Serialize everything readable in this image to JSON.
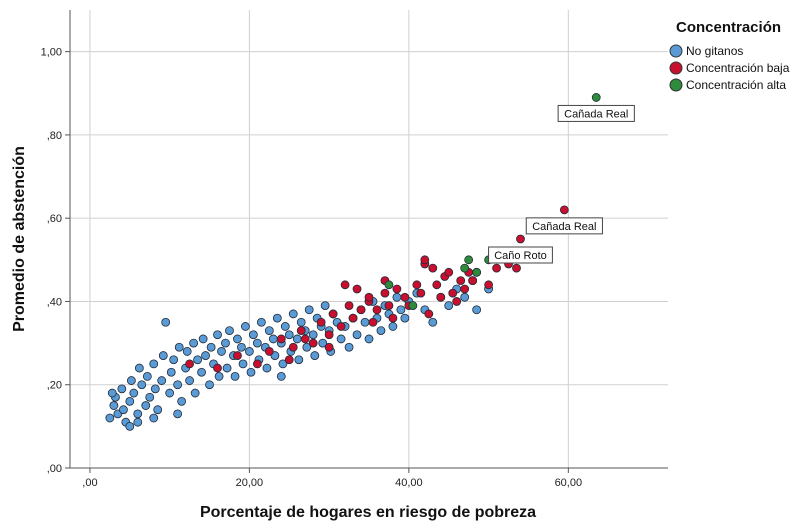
{
  "chart_data": {
    "type": "scatter",
    "xlabel": "Porcentaje de hogares en riesgo de pobreza",
    "ylabel": "Promedio de abstención",
    "xlim": [
      -2.5,
      72.5
    ],
    "ylim": [
      0,
      1.1
    ],
    "x_ticks": [
      {
        "value": 0,
        "label": ",00"
      },
      {
        "value": 20,
        "label": "20,00"
      },
      {
        "value": 40,
        "label": "40,00"
      },
      {
        "value": 60,
        "label": "60,00"
      }
    ],
    "y_ticks": [
      {
        "value": 0,
        "label": ",00"
      },
      {
        "value": 0.2,
        "label": ",20"
      },
      {
        "value": 0.4,
        "label": ",40"
      },
      {
        "value": 0.6,
        "label": ",60"
      },
      {
        "value": 0.8,
        "label": ",80"
      },
      {
        "value": 1.0,
        "label": "1,00"
      }
    ],
    "grid": true,
    "legend": {
      "title": "Concentración",
      "placement": "top-right",
      "entries": [
        {
          "name": "No gitanos",
          "color": "#5b9bd5"
        },
        {
          "name": "Concentración baja",
          "color": "#c8102e"
        },
        {
          "name": "Concentración alta",
          "color": "#2e8b3c"
        }
      ]
    },
    "series": [
      {
        "name": "No gitanos",
        "color": "#5b9bd5",
        "points": [
          [
            2.5,
            0.12
          ],
          [
            3.0,
            0.15
          ],
          [
            3.2,
            0.17
          ],
          [
            3.5,
            0.13
          ],
          [
            4.0,
            0.19
          ],
          [
            4.2,
            0.14
          ],
          [
            4.5,
            0.11
          ],
          [
            5.0,
            0.16
          ],
          [
            5.2,
            0.21
          ],
          [
            5.5,
            0.18
          ],
          [
            6.0,
            0.13
          ],
          [
            6.2,
            0.24
          ],
          [
            6.5,
            0.2
          ],
          [
            7.0,
            0.15
          ],
          [
            7.2,
            0.22
          ],
          [
            7.5,
            0.17
          ],
          [
            8.0,
            0.25
          ],
          [
            8.2,
            0.19
          ],
          [
            8.5,
            0.14
          ],
          [
            9.0,
            0.21
          ],
          [
            9.2,
            0.27
          ],
          [
            9.5,
            0.35
          ],
          [
            10.0,
            0.18
          ],
          [
            10.2,
            0.23
          ],
          [
            10.5,
            0.26
          ],
          [
            11.0,
            0.2
          ],
          [
            11.2,
            0.29
          ],
          [
            11.5,
            0.16
          ],
          [
            12.0,
            0.24
          ],
          [
            12.2,
            0.28
          ],
          [
            12.5,
            0.21
          ],
          [
            13.0,
            0.3
          ],
          [
            13.2,
            0.18
          ],
          [
            13.5,
            0.26
          ],
          [
            14.0,
            0.23
          ],
          [
            14.2,
            0.31
          ],
          [
            14.5,
            0.27
          ],
          [
            15.0,
            0.2
          ],
          [
            15.2,
            0.29
          ],
          [
            15.5,
            0.25
          ],
          [
            16.0,
            0.32
          ],
          [
            16.2,
            0.22
          ],
          [
            16.5,
            0.28
          ],
          [
            17.0,
            0.3
          ],
          [
            17.2,
            0.24
          ],
          [
            17.5,
            0.33
          ],
          [
            18.0,
            0.27
          ],
          [
            18.2,
            0.22
          ],
          [
            18.5,
            0.31
          ],
          [
            19.0,
            0.29
          ],
          [
            19.2,
            0.25
          ],
          [
            19.5,
            0.34
          ],
          [
            20.0,
            0.28
          ],
          [
            20.2,
            0.23
          ],
          [
            20.5,
            0.32
          ],
          [
            21.0,
            0.3
          ],
          [
            21.2,
            0.26
          ],
          [
            21.5,
            0.35
          ],
          [
            22.0,
            0.29
          ],
          [
            22.2,
            0.24
          ],
          [
            22.5,
            0.33
          ],
          [
            23.0,
            0.31
          ],
          [
            23.2,
            0.27
          ],
          [
            23.5,
            0.36
          ],
          [
            24.0,
            0.3
          ],
          [
            24.2,
            0.25
          ],
          [
            24.5,
            0.34
          ],
          [
            25.0,
            0.32
          ],
          [
            25.2,
            0.28
          ],
          [
            25.5,
            0.37
          ],
          [
            26.0,
            0.31
          ],
          [
            26.2,
            0.26
          ],
          [
            26.5,
            0.35
          ],
          [
            27.0,
            0.33
          ],
          [
            27.2,
            0.29
          ],
          [
            27.5,
            0.38
          ],
          [
            28.0,
            0.32
          ],
          [
            28.2,
            0.27
          ],
          [
            28.5,
            0.36
          ],
          [
            29.0,
            0.34
          ],
          [
            29.2,
            0.3
          ],
          [
            29.5,
            0.39
          ],
          [
            30.0,
            0.33
          ],
          [
            30.2,
            0.28
          ],
          [
            30.5,
            0.37
          ],
          [
            31.0,
            0.35
          ],
          [
            31.5,
            0.31
          ],
          [
            32.0,
            0.34
          ],
          [
            32.5,
            0.29
          ],
          [
            33.0,
            0.36
          ],
          [
            33.5,
            0.32
          ],
          [
            34.0,
            0.38
          ],
          [
            34.5,
            0.35
          ],
          [
            35.0,
            0.31
          ],
          [
            35.5,
            0.4
          ],
          [
            36.0,
            0.36
          ],
          [
            36.5,
            0.33
          ],
          [
            37.0,
            0.39
          ],
          [
            37.5,
            0.37
          ],
          [
            38.0,
            0.34
          ],
          [
            38.5,
            0.41
          ],
          [
            39.0,
            0.38
          ],
          [
            39.5,
            0.36
          ],
          [
            40.0,
            0.4
          ],
          [
            41.0,
            0.42
          ],
          [
            42.0,
            0.38
          ],
          [
            43.0,
            0.35
          ],
          [
            44.0,
            0.41
          ],
          [
            45.0,
            0.39
          ],
          [
            46.0,
            0.43
          ],
          [
            47.0,
            0.41
          ],
          [
            48.0,
            0.45
          ],
          [
            48.5,
            0.38
          ],
          [
            50.0,
            0.43
          ],
          [
            5.0,
            0.1
          ],
          [
            6.0,
            0.11
          ],
          [
            8.0,
            0.12
          ],
          [
            2.8,
            0.18
          ],
          [
            11.0,
            0.13
          ],
          [
            24.0,
            0.22
          ]
        ]
      },
      {
        "name": "Concentración baja",
        "color": "#c8102e",
        "points": [
          [
            12.5,
            0.25
          ],
          [
            16.0,
            0.24
          ],
          [
            18.5,
            0.27
          ],
          [
            21.0,
            0.25
          ],
          [
            22.5,
            0.28
          ],
          [
            24.0,
            0.31
          ],
          [
            25.0,
            0.26
          ],
          [
            25.5,
            0.29
          ],
          [
            26.5,
            0.33
          ],
          [
            27.0,
            0.31
          ],
          [
            28.0,
            0.3
          ],
          [
            29.0,
            0.35
          ],
          [
            30.0,
            0.32
          ],
          [
            30.5,
            0.37
          ],
          [
            31.5,
            0.34
          ],
          [
            32.5,
            0.39
          ],
          [
            33.0,
            0.36
          ],
          [
            33.5,
            0.43
          ],
          [
            34.0,
            0.38
          ],
          [
            35.0,
            0.4
          ],
          [
            35.5,
            0.35
          ],
          [
            36.0,
            0.38
          ],
          [
            37.0,
            0.42
          ],
          [
            37.5,
            0.39
          ],
          [
            38.0,
            0.36
          ],
          [
            38.5,
            0.43
          ],
          [
            39.5,
            0.41
          ],
          [
            40.0,
            0.39
          ],
          [
            41.0,
            0.44
          ],
          [
            41.5,
            0.42
          ],
          [
            42.0,
            0.49
          ],
          [
            42.5,
            0.37
          ],
          [
            43.0,
            0.48
          ],
          [
            43.5,
            0.44
          ],
          [
            44.0,
            0.41
          ],
          [
            44.5,
            0.46
          ],
          [
            45.0,
            0.47
          ],
          [
            45.5,
            0.42
          ],
          [
            46.0,
            0.4
          ],
          [
            46.5,
            0.45
          ],
          [
            47.0,
            0.43
          ],
          [
            47.5,
            0.47
          ],
          [
            48.0,
            0.45
          ],
          [
            48.5,
            0.47
          ],
          [
            50.0,
            0.44
          ],
          [
            51.0,
            0.48
          ],
          [
            52.5,
            0.49
          ],
          [
            53.5,
            0.48
          ],
          [
            54.0,
            0.55
          ],
          [
            59.5,
            0.62
          ],
          [
            32.0,
            0.44
          ],
          [
            35.0,
            0.41
          ],
          [
            37.0,
            0.45
          ],
          [
            42.0,
            0.5
          ],
          [
            30.0,
            0.29
          ]
        ]
      },
      {
        "name": "Concentración alta",
        "color": "#2e8b3c",
        "points": [
          [
            63.5,
            0.89
          ],
          [
            47.5,
            0.5
          ],
          [
            50.0,
            0.5
          ],
          [
            47.0,
            0.48
          ],
          [
            48.5,
            0.47
          ],
          [
            37.5,
            0.44
          ],
          [
            40.5,
            0.39
          ]
        ]
      }
    ],
    "annotations": [
      {
        "text": "Cañada Real",
        "x": 63.5,
        "y": 0.89
      },
      {
        "text": "Cañada Real",
        "x": 59.5,
        "y": 0.62
      },
      {
        "text": "Caño Roto",
        "x": 54.0,
        "y": 0.55
      }
    ]
  }
}
